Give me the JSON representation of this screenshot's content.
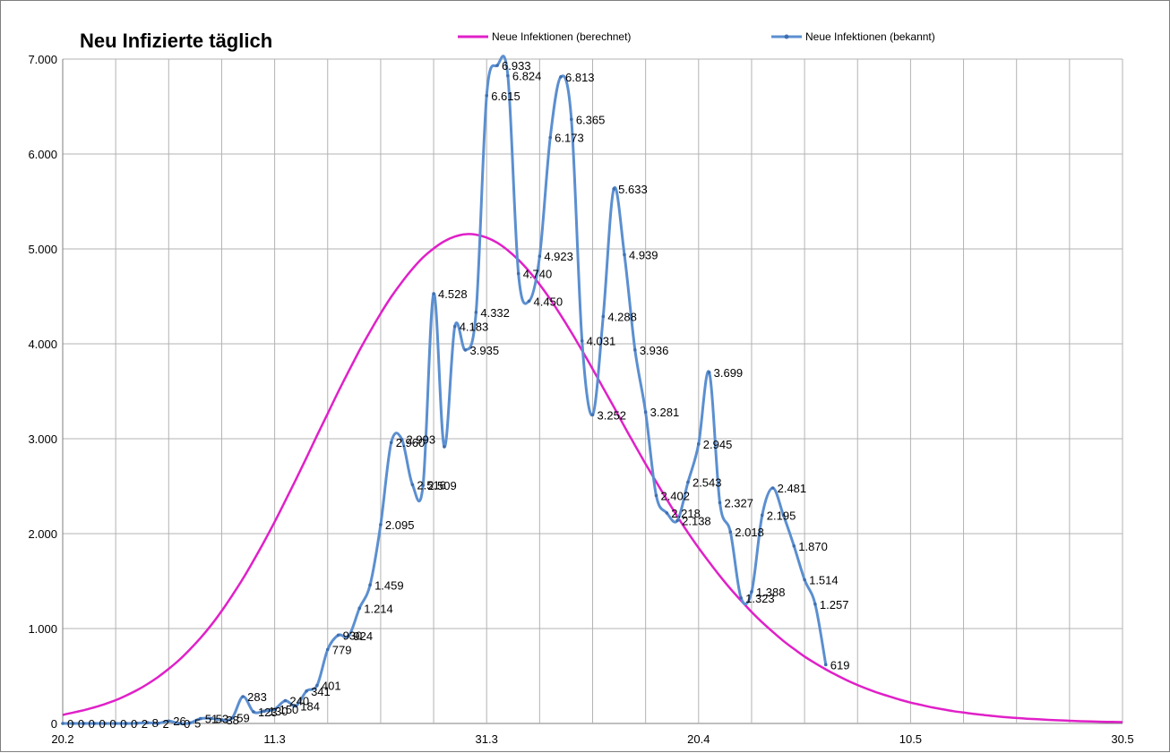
{
  "chart_data": {
    "type": "line",
    "title": "Neu Infizierte täglich",
    "xlabel": "",
    "ylabel": "",
    "ylim": [
      0,
      7000
    ],
    "y_ticks": [
      "0",
      "1.000",
      "2.000",
      "3.000",
      "4.000",
      "5.000",
      "6.000",
      "7.000"
    ],
    "x_tick_labels": [
      "20.2",
      "11.3",
      "31.3",
      "20.4",
      "10.5",
      "30.5"
    ],
    "grid": true,
    "legend_position": "top",
    "series": [
      {
        "name": "Neue Infektionen (berechnet)",
        "color": "#e020c8",
        "smooth": true,
        "values": [
          90,
          115,
          140,
          170,
          205,
          245,
          295,
          350,
          415,
          490,
          575,
          670,
          780,
          900,
          1035,
          1185,
          1350,
          1525,
          1715,
          1915,
          2125,
          2345,
          2570,
          2800,
          3035,
          3265,
          3495,
          3715,
          3930,
          4130,
          4320,
          4495,
          4650,
          4790,
          4910,
          5005,
          5080,
          5130,
          5155,
          5150,
          5120,
          5065,
          4985,
          4885,
          4765,
          4625,
          4470,
          4300,
          4120,
          3930,
          3735,
          3535,
          3335,
          3130,
          2930,
          2735,
          2545,
          2360,
          2180,
          2010,
          1850,
          1700,
          1555,
          1420,
          1295,
          1175,
          1065,
          965,
          870,
          785,
          705,
          635,
          570,
          510,
          455,
          405,
          360,
          320,
          285,
          250,
          220,
          195,
          170,
          150,
          130,
          115,
          100,
          88,
          76,
          66,
          58,
          50,
          44,
          38,
          33,
          28,
          24,
          21,
          18,
          16,
          14
        ]
      },
      {
        "name": "Neue Infektionen (bekannt)",
        "color": "#5b8fd0",
        "smooth": true,
        "values": [
          0,
          0,
          0,
          0,
          0,
          0,
          0,
          2,
          8,
          2,
          26,
          0,
          5,
          51,
          53,
          38,
          59,
          283,
          123,
          130,
          150,
          240,
          184,
          341,
          401,
          779,
          930,
          924,
          1214,
          1459,
          2095,
          2960,
          2993,
          2516,
          2509,
          4528,
          2916,
          4183,
          3935,
          4332,
          6615,
          6933,
          6824,
          4740,
          4450,
          4923,
          6173,
          6813,
          6365,
          4031,
          3252,
          4288,
          5633,
          4939,
          3936,
          3281,
          2402,
          2218,
          2138,
          2543,
          2945,
          3699,
          2327,
          2018,
          1323,
          1388,
          2195,
          2481,
          2195,
          1870,
          1514,
          1257,
          619
        ],
        "data_labels": [
          "0",
          "0",
          "0",
          "0",
          "0",
          "0",
          "0",
          "2",
          "8",
          "2",
          "26",
          "0",
          "5",
          "51",
          "53",
          "38",
          "59",
          "283",
          "123",
          "130",
          "150",
          "240",
          "184",
          "341",
          "401",
          "779",
          "930",
          "924",
          "1.214",
          "1.459",
          "2.095",
          "2.960",
          "2.993",
          "2.516",
          "2.509",
          "4.528",
          "",
          "4.183",
          "3.935",
          "4.332",
          "6.615",
          "6.933",
          "6.824",
          "4.740",
          "4.450",
          "4.923",
          "6.173",
          "6.813",
          "6.365",
          "4.031",
          "3.252",
          "4.288",
          "5.633",
          "4.939",
          "3.936",
          "3.281",
          "2.402",
          "2.218",
          "2.138",
          "2.543",
          "2.945",
          "3.699",
          "2.327",
          "2.018",
          "1.323",
          "1.388",
          "2.195",
          "2.481",
          "",
          "1.870",
          "1.514",
          "1.257",
          "619"
        ]
      }
    ]
  }
}
